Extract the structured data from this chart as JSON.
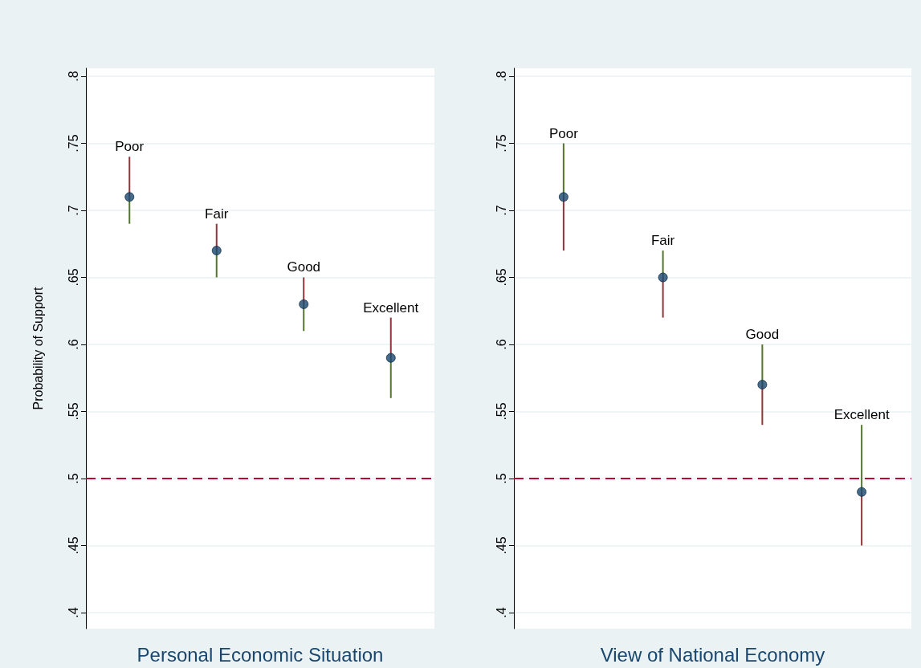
{
  "chart_data": [
    {
      "type": "bar",
      "xlabel": "Personal Economic Situation",
      "ylabel": "Probability of Support",
      "categories": [
        "Poor",
        "Fair",
        "Good",
        "Excellent"
      ],
      "ylim": [
        0.388,
        0.806
      ],
      "yticks": [
        {
          "value": 0.4,
          "label": ".4"
        },
        {
          "value": 0.45,
          "label": ".45"
        },
        {
          "value": 0.5,
          "label": ".5"
        },
        {
          "value": 0.55,
          "label": ".55"
        },
        {
          "value": 0.6,
          "label": ".6"
        },
        {
          "value": 0.65,
          "label": ".65"
        },
        {
          "value": 0.7,
          "label": ".7"
        },
        {
          "value": 0.75,
          "label": ".75"
        },
        {
          "value": 0.8,
          "label": ".8"
        }
      ],
      "grid": "y",
      "tick_labels": "y",
      "ref_lines": [
        {
          "axis": "y",
          "value": 0.5,
          "color": "#c10534",
          "line_style": "dashed"
        }
      ],
      "series": [
        {
          "color": "#90353b",
          "base": [
            0.71,
            0.67,
            0.63,
            0.59
          ],
          "values": [
            0.03,
            0.02,
            0.02,
            0.03
          ]
        },
        {
          "color": "#55752f",
          "base": [
            0.69,
            0.65,
            0.61,
            0.56
          ],
          "values": [
            0.02,
            0.02,
            0.02,
            0.03
          ]
        },
        {
          "type": "scatter",
          "color": "#1a476f",
          "marker": "circle",
          "x": [
            "Poor",
            "Fair",
            "Good",
            "Excellent"
          ],
          "values": [
            0.71,
            0.67,
            0.63,
            0.59
          ]
        }
      ]
    },
    {
      "type": "bar",
      "xlabel": "View of National Economy",
      "categories": [
        "Poor",
        "Fair",
        "Good",
        "Excellent"
      ],
      "ylim": [
        0.388,
        0.806
      ],
      "yticks": [
        {
          "value": 0.4,
          "label": ".4"
        },
        {
          "value": 0.45,
          "label": ".45"
        },
        {
          "value": 0.5,
          "label": ".5"
        },
        {
          "value": 0.55,
          "label": ".55"
        },
        {
          "value": 0.6,
          "label": ".6"
        },
        {
          "value": 0.65,
          "label": ".65"
        },
        {
          "value": 0.7,
          "label": ".7"
        },
        {
          "value": 0.75,
          "label": ".75"
        },
        {
          "value": 0.8,
          "label": ".8"
        }
      ],
      "grid": "y",
      "tick_labels": "y",
      "ref_lines": [
        {
          "axis": "y",
          "value": 0.5,
          "color": "#c10534",
          "line_style": "dashed"
        }
      ],
      "series": [
        {
          "color": "#55752f",
          "base": [
            0.71,
            0.65,
            0.57,
            0.49
          ],
          "values": [
            0.04,
            0.02,
            0.03,
            0.05
          ]
        },
        {
          "color": "#90353b",
          "base": [
            0.67,
            0.62,
            0.54,
            0.45
          ],
          "values": [
            0.04,
            0.03,
            0.03,
            0.04
          ]
        },
        {
          "type": "scatter",
          "color": "#1a476f",
          "marker": "circle",
          "x": [
            "Poor",
            "Fair",
            "Good",
            "Excellent"
          ],
          "values": [
            0.71,
            0.65,
            0.57,
            0.49
          ]
        }
      ]
    }
  ]
}
